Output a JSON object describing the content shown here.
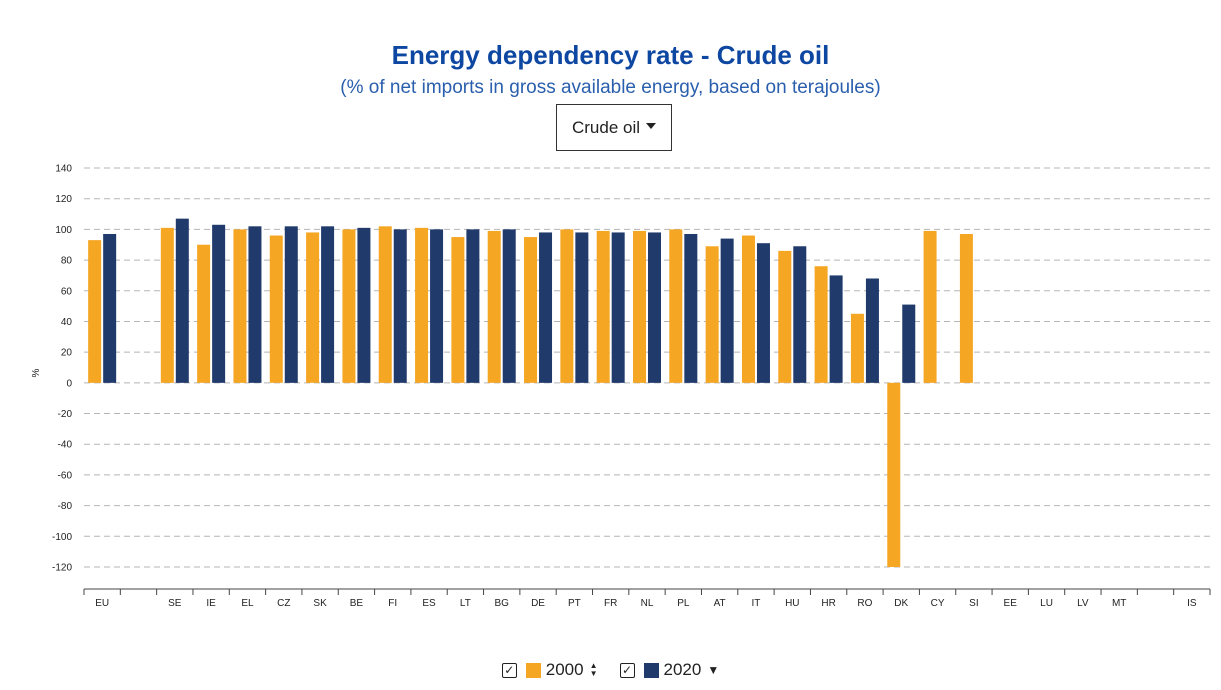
{
  "header": {
    "title": "Energy dependency rate - Crude oil",
    "subtitle": "(% of net imports in gross available energy, based on terajoules)"
  },
  "selector": {
    "value": "Crude oil"
  },
  "legend": {
    "items": [
      {
        "label": "2000",
        "color": "#f5a623",
        "checked": true,
        "sort_icon": "sort-updown-icon"
      },
      {
        "label": "2020",
        "color": "#1f3a6b",
        "checked": true,
        "sort_icon": "sort-down-icon"
      }
    ]
  },
  "chart_data": {
    "type": "bar",
    "title": "Energy dependency rate - Crude oil",
    "subtitle": "(% of net imports in gross available energy, based on terajoules)",
    "ylabel": "%",
    "ylim": [
      -120,
      140
    ],
    "yticks": [
      140,
      120,
      100,
      80,
      60,
      40,
      20,
      0,
      -20,
      -40,
      -60,
      -80,
      -100,
      -120
    ],
    "grid": true,
    "legend_position": "bottom",
    "categories": [
      "EU",
      "",
      "SE",
      "IE",
      "EL",
      "CZ",
      "SK",
      "BE",
      "FI",
      "ES",
      "LT",
      "BG",
      "DE",
      "PT",
      "FR",
      "NL",
      "PL",
      "AT",
      "IT",
      "HU",
      "HR",
      "RO",
      "DK",
      "CY",
      "SI",
      "EE",
      "LU",
      "LV",
      "MT",
      "",
      "IS"
    ],
    "series": [
      {
        "name": "2000",
        "color": "#f5a623",
        "values": [
          93,
          null,
          101,
          90,
          100,
          96,
          98,
          100,
          102,
          101,
          95,
          99,
          95,
          100,
          99,
          99,
          100,
          89,
          96,
          86,
          76,
          45,
          -120,
          99,
          97,
          null,
          null,
          null,
          null,
          null,
          null
        ]
      },
      {
        "name": "2020",
        "color": "#1f3a6b",
        "values": [
          97,
          null,
          107,
          103,
          102,
          102,
          102,
          101,
          100,
          100,
          100,
          100,
          98,
          98,
          98,
          98,
          97,
          94,
          91,
          89,
          70,
          68,
          51,
          null,
          null,
          null,
          null,
          null,
          null,
          null,
          null
        ]
      }
    ]
  }
}
